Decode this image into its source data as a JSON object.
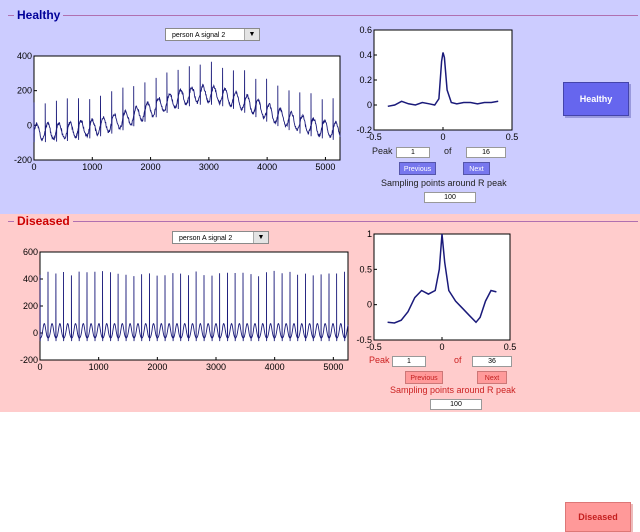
{
  "healthy": {
    "title": "Healthy",
    "dropdown_value": "person A signal 2",
    "peak_label": "Peak",
    "peak_value": "1",
    "of_label": "of",
    "peak_total": "16",
    "previous_label": "Previous",
    "next_label": "Next",
    "sampling_label": "Sampling points around R peak",
    "sampling_value": "100",
    "button_label": "Healthy",
    "main_plot": {
      "x_ticks": [
        "0",
        "1000",
        "2000",
        "3000",
        "4000",
        "5000"
      ],
      "y_ticks": [
        "400",
        "200",
        "0",
        "-200"
      ]
    },
    "peak_plot": {
      "x_ticks": [
        "-0.5",
        "0",
        "0.5"
      ],
      "y_ticks": [
        "0.6",
        "0.4",
        "0.2",
        "0",
        "-0.2"
      ]
    }
  },
  "diseased": {
    "title": "Diseased",
    "dropdown_value": "person A signal 2",
    "peak_label": "Peak",
    "peak_value": "1",
    "of_label": "of",
    "peak_total": "36",
    "previous_label": "Previous",
    "next_label": "Next",
    "sampling_label": "Sampling points around R peak",
    "sampling_value": "100",
    "button_label": "Diseased",
    "main_plot": {
      "x_ticks": [
        "0",
        "1000",
        "2000",
        "3000",
        "4000",
        "5000"
      ],
      "y_ticks": [
        "600",
        "400",
        "200",
        "0",
        "-200"
      ]
    },
    "peak_plot": {
      "x_ticks": [
        "-0.5",
        "0",
        "0.5"
      ],
      "y_ticks": [
        "1",
        "0.5",
        "0",
        "-0.5"
      ]
    }
  },
  "colors": {
    "healthy_bg": "#ccccff",
    "diseased_bg": "#ffcccc",
    "signal_line": "#1a1a7a"
  }
}
